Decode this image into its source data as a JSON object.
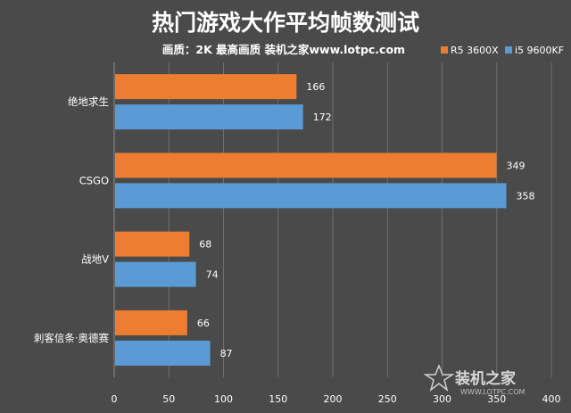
{
  "chart_data": {
    "type": "bar",
    "orientation": "horizontal",
    "title": "热门游戏大作平均帧数测试",
    "subtitle": "画质：2K 最高画质 装机之家www.lotpc.com",
    "categories": [
      "绝地求生",
      "CSGO",
      "战地V",
      "刺客信条·奥德赛"
    ],
    "series": [
      {
        "name": "R5 3600X",
        "color": "#ed7d31",
        "values": [
          166,
          349,
          68,
          66
        ]
      },
      {
        "name": "i5 9600KF",
        "color": "#5b9bd5",
        "values": [
          172,
          358,
          74,
          87
        ]
      }
    ],
    "xlim": [
      0,
      400
    ],
    "xticks": [
      0,
      50,
      100,
      150,
      200,
      250,
      300,
      350,
      400
    ],
    "grid": true,
    "legend_position": "top-right"
  },
  "watermark": {
    "text": "装机之家",
    "sub": "WWW.LOTPC.COM",
    "icon": "star-icon"
  }
}
